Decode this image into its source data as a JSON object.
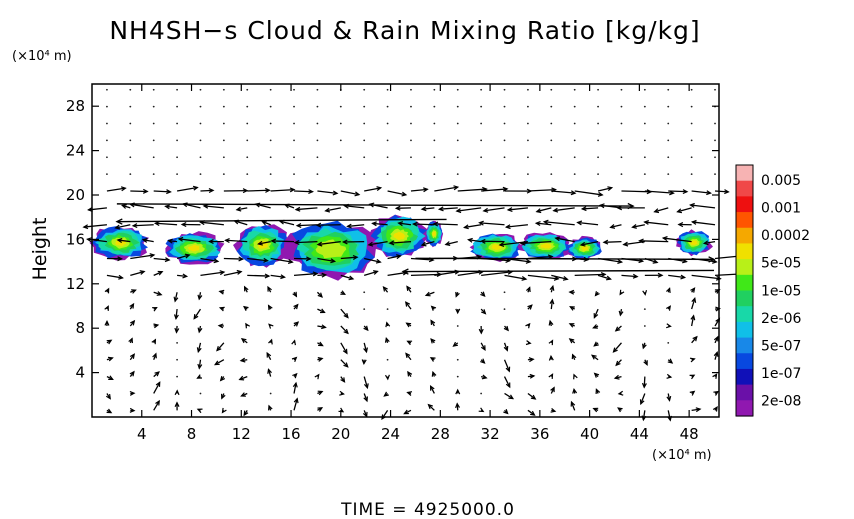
{
  "chart_data": {
    "type": "heatmap",
    "title": "NH4SH−s Cloud & Rain Mixing Ratio [kg/kg]",
    "x_unit": "(×10⁴ m)",
    "y_unit": "(×10⁴ m)",
    "ylabel": "Height",
    "xlim": [
      0,
      50.4
    ],
    "ylim": [
      0,
      30
    ],
    "x_ticks": [
      "4",
      "8",
      "12",
      "16",
      "20",
      "24",
      "28",
      "32",
      "36",
      "40",
      "44",
      "48"
    ],
    "x_tick_values": [
      4,
      8,
      12,
      16,
      20,
      24,
      28,
      32,
      36,
      40,
      44,
      48
    ],
    "y_ticks": [
      "4",
      "8",
      "12",
      "16",
      "20",
      "24",
      "28"
    ],
    "y_tick_values": [
      4,
      8,
      12,
      16,
      20,
      24,
      28
    ],
    "colorbar": {
      "labels": [
        "0.005",
        "0.001",
        "0.0002",
        "5e-05",
        "1e-05",
        "2e-06",
        "5e-07",
        "1e-07",
        "2e-08"
      ],
      "colors": [
        "#f7b3b3",
        "#f04848",
        "#ee1010",
        "#ff5500",
        "#f5a800",
        "#f0e000",
        "#b8f018",
        "#40e818",
        "#20d060",
        "#18d8a8",
        "#10c0e8",
        "#1888e8",
        "#0848e0",
        "#1010b8",
        "#6a10a8",
        "#9018b0"
      ]
    },
    "clouds": [
      {
        "x": [
          0,
          4.6
        ],
        "y": [
          14.2,
          17.2
        ],
        "level": 9
      },
      {
        "x": [
          5.8,
          10.6
        ],
        "y": [
          13.8,
          16.6
        ],
        "level": 8
      },
      {
        "x": [
          11.6,
          15.8
        ],
        "y": [
          13.6,
          17.4
        ],
        "level": 9
      },
      {
        "x": [
          15.6,
          22.8
        ],
        "y": [
          12.6,
          17.6
        ],
        "level": 7
      },
      {
        "x": [
          22.4,
          27.0
        ],
        "y": [
          14.4,
          18.2
        ],
        "level": 9
      },
      {
        "x": [
          26.8,
          28.2
        ],
        "y": [
          15.4,
          17.6
        ],
        "level": 10
      },
      {
        "x": [
          30.4,
          34.6
        ],
        "y": [
          14.0,
          16.6
        ],
        "level": 9
      },
      {
        "x": [
          34.4,
          38.6
        ],
        "y": [
          14.2,
          16.6
        ],
        "level": 9
      },
      {
        "x": [
          38.2,
          41.0
        ],
        "y": [
          14.2,
          16.2
        ],
        "level": 9
      },
      {
        "x": [
          47.0,
          49.8
        ],
        "y": [
          14.6,
          16.8
        ],
        "level": 10
      }
    ]
  },
  "time_label": "TIME  =  4925000.0"
}
